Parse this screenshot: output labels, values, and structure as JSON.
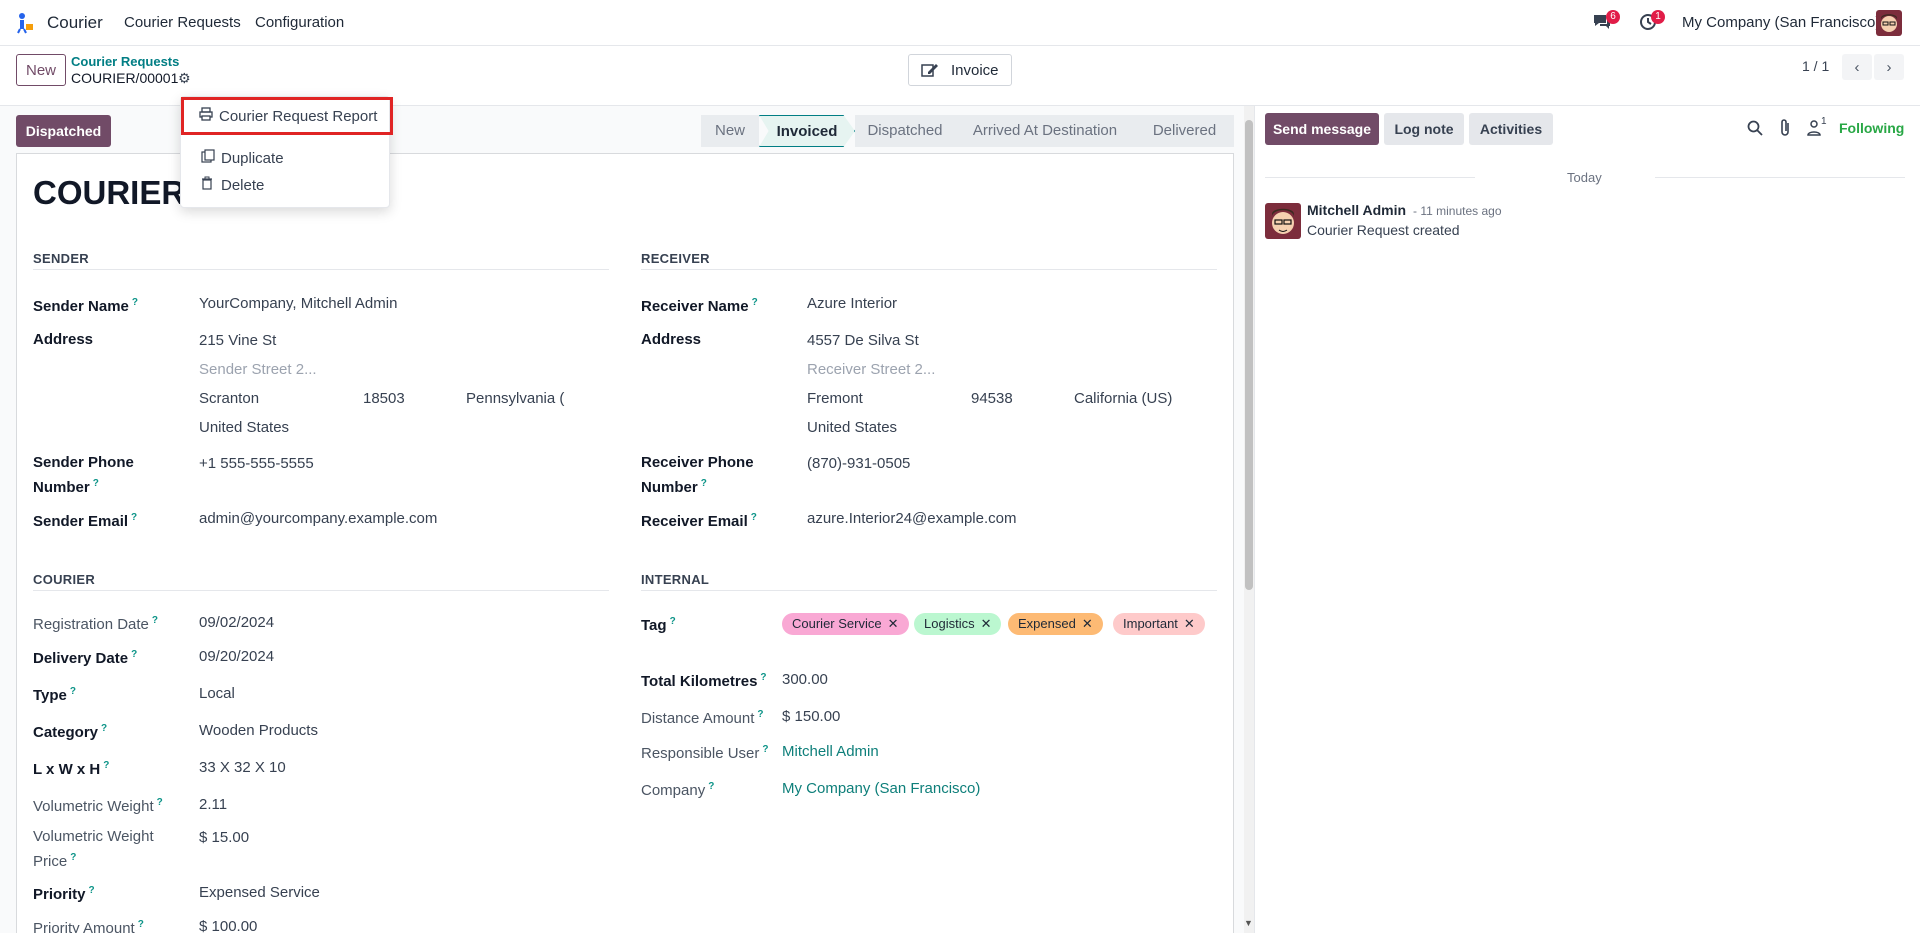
{
  "colors": {
    "brand": "#714b67",
    "teal": "#017e84",
    "following": "#28a745",
    "highlight_box": "#e02424"
  },
  "navbar": {
    "app_name": "Courier",
    "menus": [
      "Courier Requests",
      "Configuration"
    ],
    "messages_badge": "6",
    "activities_badge": "1",
    "company": "My Company (San Francisco)"
  },
  "control_panel": {
    "new_label": "New",
    "breadcrumb_parent": "Courier Requests",
    "record_name": "COURIER/00001",
    "invoice_label": "Invoice",
    "pager": "1 / 1"
  },
  "dropdown": {
    "items": [
      "Courier Request Report",
      "Duplicate",
      "Delete"
    ]
  },
  "statusbar": {
    "action_button": "Dispatched",
    "steps": [
      "New",
      "Invoiced",
      "Dispatched",
      "Arrived At Destination",
      "Delivered"
    ],
    "active": "Invoiced"
  },
  "form": {
    "title": "COURIER/",
    "sender": {
      "section": "SENDER",
      "name_label": "Sender Name",
      "name": "YourCompany, Mitchell Admin",
      "address_label": "Address",
      "street": "215 Vine St",
      "street2_placeholder": "Sender Street 2...",
      "city": "Scranton",
      "zip": "18503",
      "state": "Pennsylvania (",
      "country": "United States",
      "phone_label_1": "Sender Phone",
      "phone_label_2": "Number",
      "phone": "+1 555-555-5555",
      "email_label": "Sender Email",
      "email": "admin@yourcompany.example.com"
    },
    "receiver": {
      "section": "RECEIVER",
      "name_label": "Receiver Name",
      "name": "Azure Interior",
      "address_label": "Address",
      "street": "4557 De Silva St",
      "street2_placeholder": "Receiver Street 2...",
      "city": "Fremont",
      "zip": "94538",
      "state": "California (US)",
      "country": "United States",
      "phone_label_1": "Receiver Phone",
      "phone_label_2": "Number",
      "phone": "(870)-931-0505",
      "email_label": "Receiver Email",
      "email": "azure.Interior24@example.com"
    },
    "courier": {
      "section": "COURIER",
      "fields": [
        {
          "label": "Registration Date",
          "value": "09/02/2024"
        },
        {
          "label": "Delivery Date",
          "value": "09/20/2024"
        },
        {
          "label": "Type",
          "value": "Local"
        },
        {
          "label": "Category",
          "value": "Wooden Products"
        },
        {
          "label": "L x W x H",
          "value": "33 X 32 X 10"
        },
        {
          "label": "Volumetric Weight",
          "value": "2.11"
        },
        {
          "label": "Volumetric Weight",
          "label2": "Price",
          "value": "$ 15.00"
        },
        {
          "label": "Priority",
          "value": "Expensed Service"
        },
        {
          "label": "Priority Amount",
          "value": "$ 100.00"
        }
      ]
    },
    "internal": {
      "section": "INTERNAL",
      "tag_label": "Tag",
      "tags": [
        {
          "name": "Courier Service",
          "color": "#f9a8d4"
        },
        {
          "name": "Logistics",
          "color": "#bbf7d0"
        },
        {
          "name": "Expensed",
          "color": "#fdba74"
        },
        {
          "name": "Important",
          "color": "#fecaca"
        }
      ],
      "fields": [
        {
          "label": "Total Kilometres",
          "value": "300.00"
        },
        {
          "label": "Distance Amount",
          "value": "$ 150.00"
        },
        {
          "label": "Responsible User",
          "value": "Mitchell Admin"
        },
        {
          "label": "Company",
          "value": "My Company (San Francisco)"
        }
      ]
    }
  },
  "chatter": {
    "send_message": "Send message",
    "log_note": "Log note",
    "activities": "Activities",
    "followers_count": "1",
    "following": "Following",
    "date_separator": "Today",
    "message": {
      "author": "Mitchell Admin",
      "time": "- 11 minutes ago",
      "body": "Courier Request created"
    }
  }
}
